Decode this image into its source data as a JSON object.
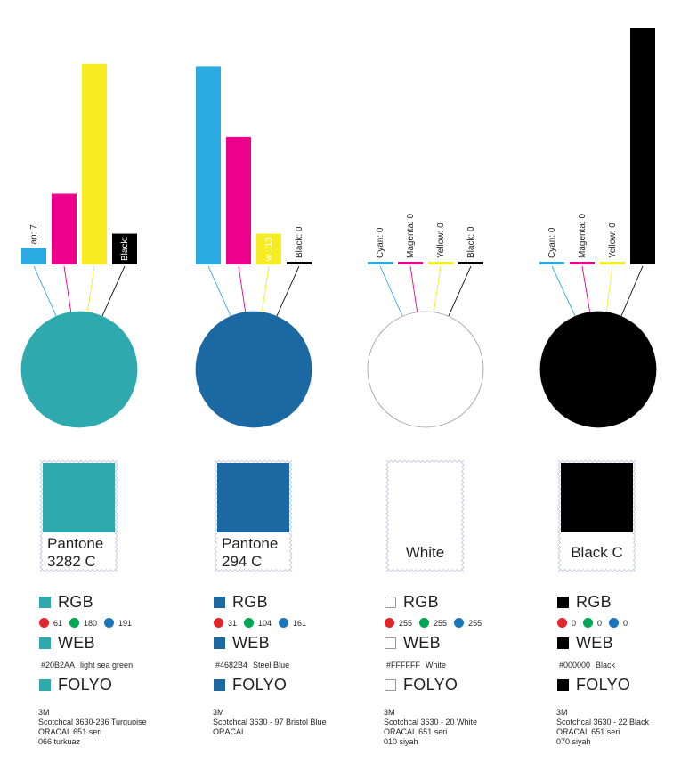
{
  "colors": {
    "cyan": "#29abe2",
    "magenta": "#ec008c",
    "yellow": "#f7ec22",
    "black": "#000000",
    "dot_red": "#e3262c",
    "dot_green": "#00a651",
    "dot_blue": "#1b75bb"
  },
  "chart_data": [
    {
      "type": "bar",
      "categories": [
        "Cyan",
        "Magenta",
        "Yellow",
        "Black"
      ],
      "bar_labels": [
        "an: 7",
        "",
        "",
        "Black: 13"
      ],
      "values": [
        7,
        30,
        85,
        13
      ],
      "swatch_color": "#2ea9ae"
    },
    {
      "type": "bar",
      "categories": [
        "Cyan",
        "Magenta",
        "Yellow",
        "Black"
      ],
      "bar_labels": [
        "",
        "",
        "w : 13",
        "Black: 0"
      ],
      "values": [
        84,
        54,
        13,
        0
      ],
      "swatch_color": "#1c68a3"
    },
    {
      "type": "bar",
      "categories": [
        "Cyan",
        "Magenta",
        "Yellow",
        "Black"
      ],
      "bar_labels": [
        "Cyan: 0",
        "Magenta: 0",
        "Yellow: 0",
        "Black: 0"
      ],
      "values": [
        0,
        0,
        0,
        0
      ],
      "swatch_color": "#ffffff"
    },
    {
      "type": "bar",
      "categories": [
        "Cyan",
        "Magenta",
        "Yellow",
        "Black"
      ],
      "bar_labels": [
        "Cyan: 0",
        "Magenta: 0",
        "Yellow: 0",
        ""
      ],
      "values": [
        0,
        0,
        0,
        100
      ],
      "swatch_color": "#000000"
    }
  ],
  "swatches": [
    {
      "label_line1": "Pantone",
      "label_line2": "3282 C",
      "color": "#2ea9ae",
      "rgb_label": "RGB",
      "r": "61",
      "g": "180",
      "b": "191",
      "web_label": "WEB",
      "web_hex": "#20B2AA",
      "web_name": "light sea green",
      "foil_label": "FOLYO",
      "foil_lines": [
        "3M",
        "Scotchcal  3630-236 Turquoise",
        "ORACAL 651 seri",
        "066 turkuaz"
      ]
    },
    {
      "label_line1": "Pantone",
      "label_line2": "294 C",
      "color": "#1c68a3",
      "rgb_label": "RGB",
      "r": "31",
      "g": "104",
      "b": "161",
      "web_label": "WEB",
      "web_hex": "#4682B4",
      "web_name": "Steel Blue",
      "foil_label": "FOLYO",
      "foil_lines": [
        "3M",
        "Scotchcal  3630 - 97 Bristol Blue",
        "ORACAL",
        ""
      ]
    },
    {
      "label_line1": "White",
      "label_line2": "",
      "color": "#ffffff",
      "rgb_label": "RGB",
      "r": "255",
      "g": "255",
      "b": "255",
      "web_label": "WEB",
      "web_hex": "#FFFFFF",
      "web_name": "White",
      "foil_label": "FOLYO",
      "foil_lines": [
        "3M",
        "Scotchcal  3630 - 20 White",
        "ORACAL 651 seri",
        "010 siyah"
      ]
    },
    {
      "label_line1": "Black C",
      "label_line2": "",
      "color": "#000000",
      "rgb_label": "RGB",
      "r": "0",
      "g": "0",
      "b": "0",
      "web_label": "WEB",
      "web_hex": "#000000",
      "web_name": "Black",
      "foil_label": "FOLYO",
      "foil_lines": [
        "3M",
        "Scotchcal  3630 - 22 Black",
        "ORACAL  651 seri",
        "070 siyah"
      ]
    }
  ]
}
